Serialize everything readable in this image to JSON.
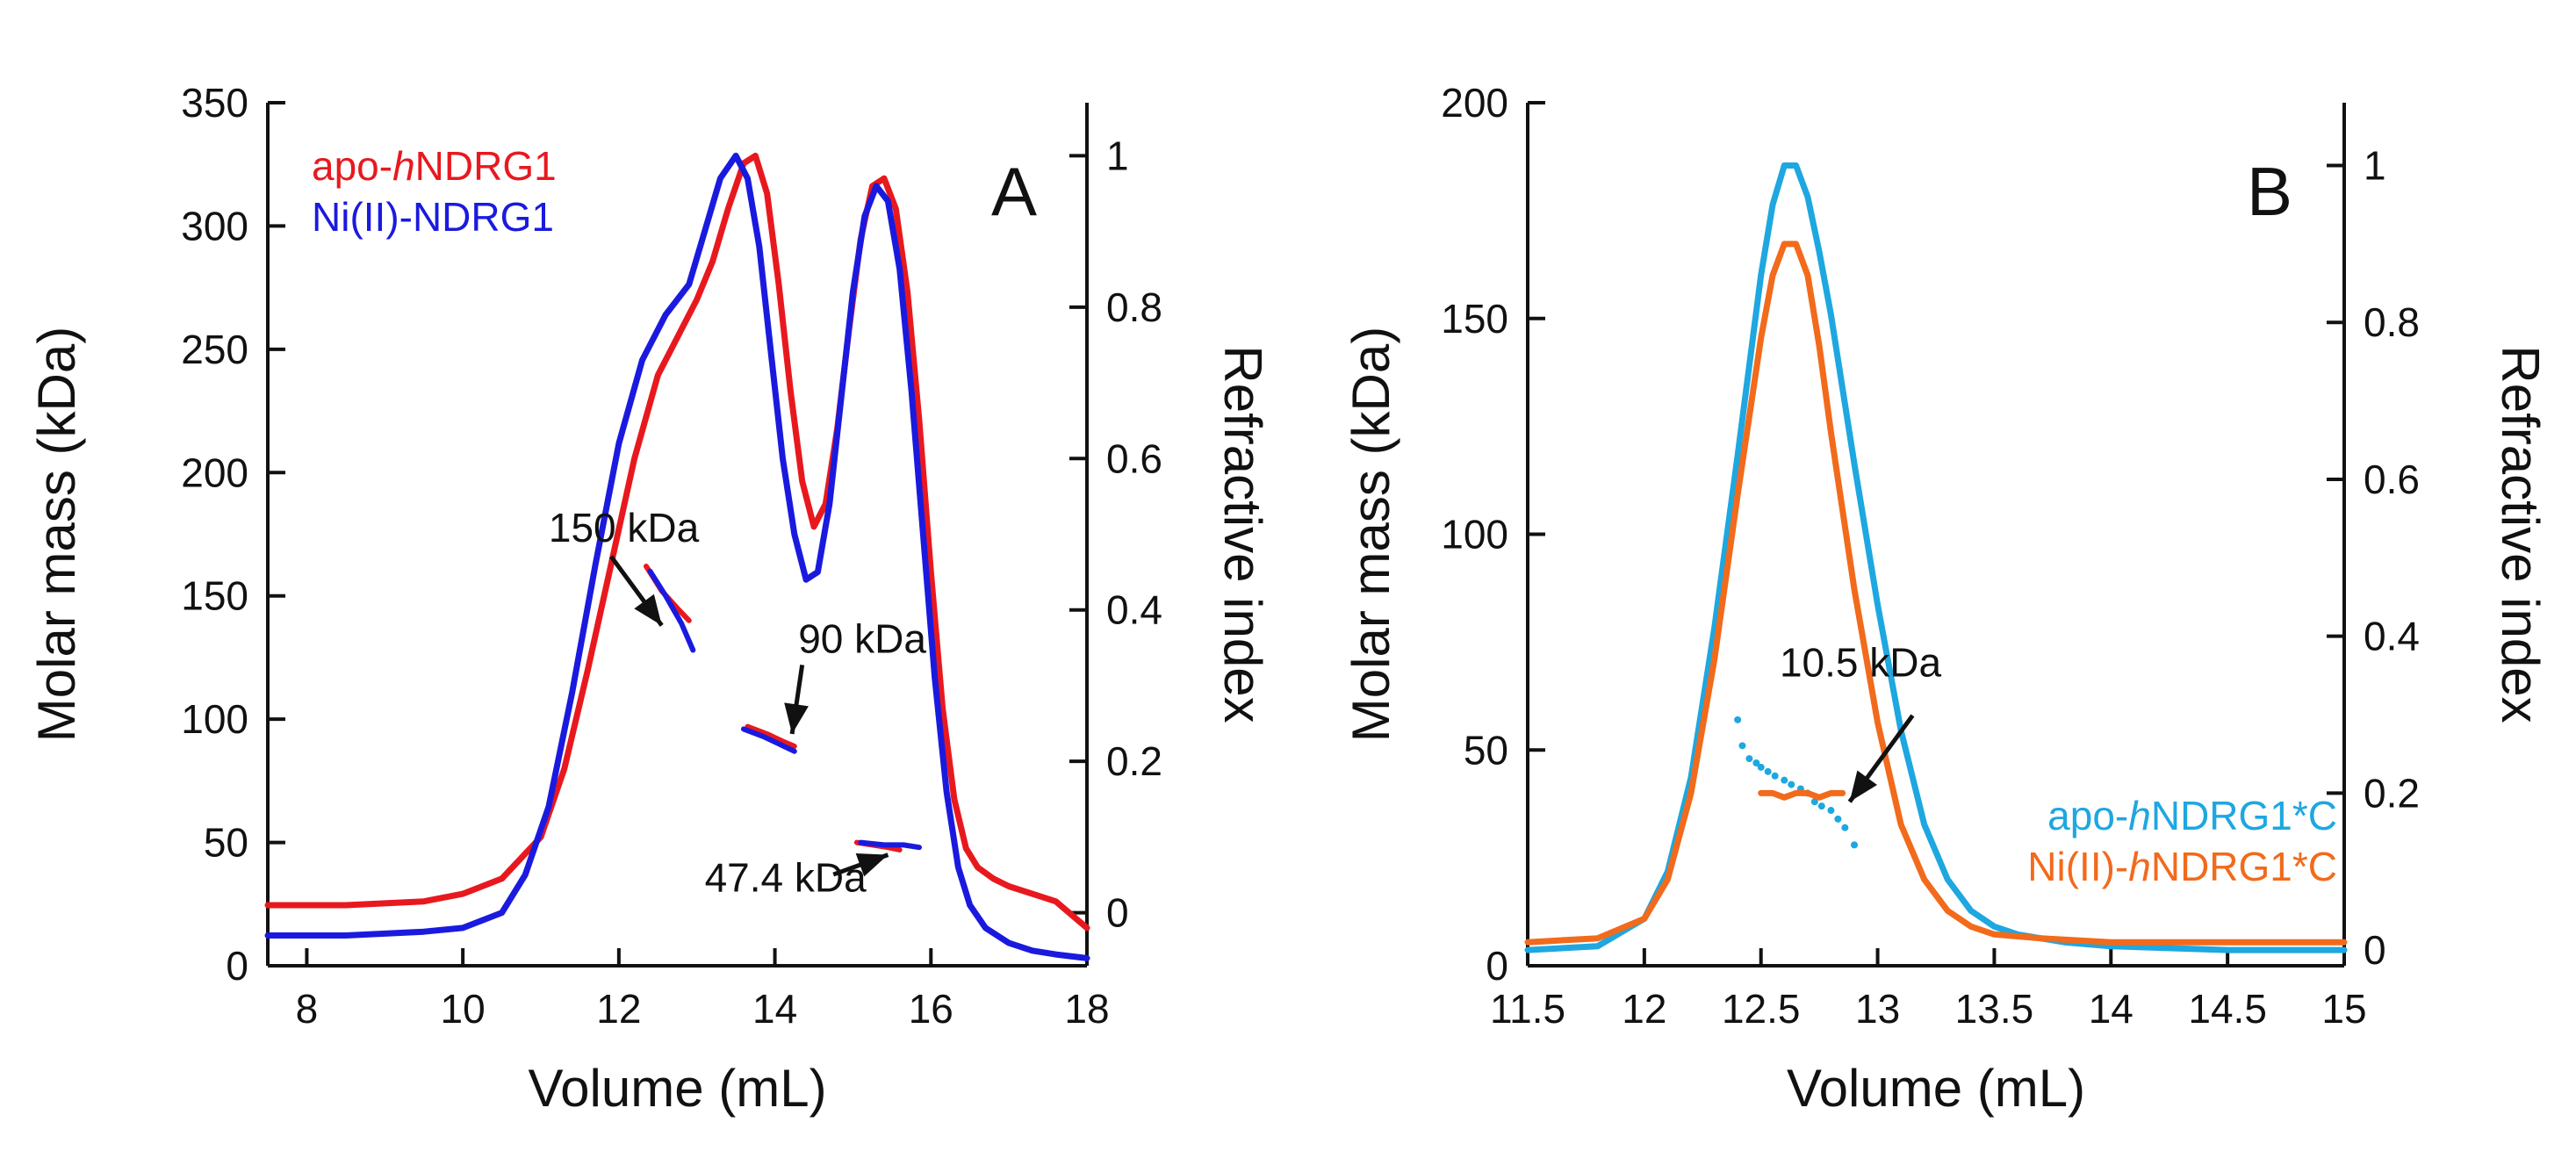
{
  "chart_data": [
    {
      "type": "line",
      "panel_label": "A",
      "xlabel": "Volume (mL)",
      "ylabel": "Molar mass (kDa)",
      "y2label": "Refractive index",
      "xlim": [
        7.5,
        18
      ],
      "ylim": [
        0,
        350
      ],
      "y2lim": [
        -0.07,
        1.07
      ],
      "x_ticks": [
        8,
        10,
        12,
        14,
        16,
        18
      ],
      "y_ticks": [
        0,
        50,
        100,
        150,
        200,
        250,
        300,
        350
      ],
      "y2_ticks": [
        0,
        0.2,
        0.4,
        0.6,
        0.8,
        1
      ],
      "y2_tick_labels": [
        "0",
        "0.2",
        "0.4",
        "0.6",
        "0.8",
        "1"
      ],
      "legend": [
        {
          "prefix": "apo-",
          "italic": "h",
          "suffix": "NDRG1",
          "color": "#e8191e"
        },
        {
          "prefix": "Ni(II)-NDRG1",
          "italic": "",
          "suffix": "",
          "color": "#1a1adf"
        }
      ],
      "series": [
        {
          "name": "apo-hNDRG1",
          "axis": "right",
          "color": "#e8191e",
          "x": [
            7.5,
            8.5,
            9.5,
            10.0,
            10.5,
            11.0,
            11.3,
            11.6,
            11.9,
            12.2,
            12.5,
            12.8,
            13.0,
            13.2,
            13.4,
            13.6,
            13.75,
            13.9,
            14.05,
            14.2,
            14.35,
            14.5,
            14.65,
            14.8,
            14.95,
            15.1,
            15.25,
            15.4,
            15.55,
            15.7,
            15.85,
            16.0,
            16.15,
            16.3,
            16.45,
            16.6,
            16.8,
            17.0,
            17.3,
            17.6,
            18.0
          ],
          "y": [
            0.01,
            0.01,
            0.015,
            0.025,
            0.045,
            0.1,
            0.19,
            0.32,
            0.46,
            0.6,
            0.71,
            0.77,
            0.81,
            0.86,
            0.93,
            0.99,
            1.0,
            0.95,
            0.83,
            0.69,
            0.57,
            0.51,
            0.54,
            0.64,
            0.77,
            0.89,
            0.96,
            0.97,
            0.93,
            0.82,
            0.65,
            0.45,
            0.27,
            0.15,
            0.085,
            0.06,
            0.045,
            0.035,
            0.025,
            0.015,
            -0.02
          ]
        },
        {
          "name": "Ni(II)-NDRG1",
          "axis": "right",
          "color": "#1a1adf",
          "x": [
            7.5,
            8.5,
            9.5,
            10.0,
            10.5,
            10.8,
            11.1,
            11.4,
            11.7,
            12.0,
            12.3,
            12.6,
            12.9,
            13.1,
            13.3,
            13.5,
            13.65,
            13.8,
            13.95,
            14.1,
            14.25,
            14.4,
            14.55,
            14.7,
            14.85,
            15.0,
            15.15,
            15.3,
            15.45,
            15.6,
            15.75,
            15.9,
            16.05,
            16.2,
            16.35,
            16.5,
            16.7,
            17.0,
            17.3,
            17.6,
            18.0
          ],
          "y": [
            -0.03,
            -0.03,
            -0.025,
            -0.02,
            0.0,
            0.05,
            0.14,
            0.29,
            0.46,
            0.62,
            0.73,
            0.79,
            0.83,
            0.9,
            0.97,
            1.0,
            0.97,
            0.88,
            0.74,
            0.6,
            0.5,
            0.44,
            0.45,
            0.54,
            0.68,
            0.82,
            0.92,
            0.96,
            0.94,
            0.85,
            0.69,
            0.5,
            0.31,
            0.16,
            0.06,
            0.01,
            -0.02,
            -0.04,
            -0.05,
            -0.055,
            -0.06
          ]
        },
        {
          "name": "apo-hNDRG1 molar mass",
          "axis": "left",
          "color": "#e8191e",
          "segments": [
            {
              "x": [
                12.35,
                12.55,
                12.75,
                12.9
              ],
              "y": [
                162,
                152,
                145,
                140
              ]
            },
            {
              "x": [
                13.65,
                13.9,
                14.1,
                14.25
              ],
              "y": [
                97,
                94,
                91,
                89
              ]
            },
            {
              "x": [
                15.05,
                15.25,
                15.45,
                15.6
              ],
              "y": [
                50,
                49,
                48,
                47
              ]
            }
          ]
        },
        {
          "name": "Ni(II)-NDRG1 molar mass",
          "axis": "left",
          "color": "#1a1adf",
          "segments": [
            {
              "x": [
                12.4,
                12.6,
                12.8,
                12.95
              ],
              "y": [
                160,
                150,
                139,
                128
              ]
            },
            {
              "x": [
                13.6,
                13.85,
                14.05,
                14.25
              ],
              "y": [
                96,
                93,
                90,
                87
              ]
            },
            {
              "x": [
                15.1,
                15.4,
                15.65,
                15.85
              ],
              "y": [
                50,
                49,
                49,
                48
              ]
            }
          ]
        }
      ],
      "annotations": [
        {
          "text": "150 kDa",
          "x": 11.1,
          "y": 172,
          "arrow_from": [
            11.9,
            166
          ],
          "arrow_to": [
            12.55,
            138
          ]
        },
        {
          "text": "90 kDa",
          "x": 14.3,
          "y": 127,
          "arrow_from": [
            14.35,
            122
          ],
          "arrow_to": [
            14.22,
            94
          ]
        },
        {
          "text": "47.4 kDa",
          "x": 13.1,
          "y": 30,
          "arrow_from": [
            14.75,
            37
          ],
          "arrow_to": [
            15.45,
            45
          ]
        }
      ]
    },
    {
      "type": "line",
      "panel_label": "B",
      "xlabel": "Volume (mL)",
      "ylabel": "Molar mass (kDa)",
      "y2label": "Refractive index",
      "xlim": [
        11.5,
        15
      ],
      "ylim": [
        0,
        200
      ],
      "y2lim": [
        -0.02,
        1.08
      ],
      "x_ticks": [
        11.5,
        12,
        12.5,
        13,
        13.5,
        14,
        14.5,
        15
      ],
      "y_ticks": [
        0,
        50,
        100,
        150,
        200
      ],
      "y2_ticks": [
        0,
        0.2,
        0.4,
        0.6,
        0.8,
        1
      ],
      "y2_tick_labels": [
        "0",
        "0.2",
        "0.4",
        "0.6",
        "0.8",
        "1"
      ],
      "legend": [
        {
          "prefix": "apo-",
          "italic": "h",
          "suffix": "NDRG1*C",
          "color": "#1ea7e0"
        },
        {
          "prefix": "Ni(II)-",
          "italic": "h",
          "suffix": "NDRG1*C",
          "color": "#f26a1b"
        }
      ],
      "series": [
        {
          "name": "apo-hNDRG1*C",
          "axis": "right",
          "color": "#1ea7e0",
          "x": [
            11.5,
            11.8,
            12.0,
            12.1,
            12.2,
            12.3,
            12.4,
            12.5,
            12.55,
            12.6,
            12.65,
            12.7,
            12.75,
            12.8,
            12.9,
            13.0,
            13.1,
            13.2,
            13.3,
            13.4,
            13.5,
            13.6,
            13.8,
            14.0,
            14.5,
            15.0
          ],
          "y": [
            0.0,
            0.005,
            0.04,
            0.1,
            0.22,
            0.41,
            0.63,
            0.86,
            0.95,
            1.0,
            1.0,
            0.96,
            0.89,
            0.81,
            0.62,
            0.44,
            0.28,
            0.16,
            0.09,
            0.05,
            0.03,
            0.02,
            0.01,
            0.005,
            0.0,
            0.0
          ]
        },
        {
          "name": "Ni(II)-hNDRG1*C",
          "axis": "right",
          "color": "#f26a1b",
          "x": [
            11.5,
            11.8,
            12.0,
            12.1,
            12.2,
            12.3,
            12.4,
            12.5,
            12.55,
            12.6,
            12.65,
            12.7,
            12.75,
            12.8,
            12.9,
            13.0,
            13.1,
            13.2,
            13.3,
            13.4,
            13.5,
            13.7,
            14.0,
            14.5,
            15.0
          ],
          "y": [
            0.01,
            0.015,
            0.04,
            0.09,
            0.2,
            0.37,
            0.58,
            0.78,
            0.86,
            0.9,
            0.9,
            0.86,
            0.77,
            0.66,
            0.46,
            0.29,
            0.16,
            0.09,
            0.05,
            0.03,
            0.02,
            0.015,
            0.01,
            0.01,
            0.01
          ]
        },
        {
          "name": "apo-hNDRG1*C molar mass",
          "axis": "left",
          "color": "#1ea7e0",
          "scatter": true,
          "x": [
            12.4,
            12.42,
            12.45,
            12.48,
            12.5,
            12.53,
            12.56,
            12.6,
            12.63,
            12.67,
            12.7,
            12.73,
            12.76,
            12.8,
            12.83,
            12.86,
            12.9
          ],
          "y": [
            57,
            51,
            48,
            47,
            46,
            45,
            44,
            43,
            42,
            41,
            40,
            38,
            37,
            36,
            34,
            32,
            28
          ]
        },
        {
          "name": "Ni(II)-hNDRG1*C molar mass",
          "axis": "left",
          "color": "#f26a1b",
          "x": [
            12.5,
            12.55,
            12.6,
            12.65,
            12.7,
            12.75,
            12.8,
            12.85
          ],
          "y": [
            40,
            40,
            39,
            40,
            40,
            39,
            40,
            40
          ]
        }
      ],
      "annotations": [
        {
          "text": "10.5 kDa",
          "x": 12.58,
          "y": 67,
          "arrow_from": [
            13.15,
            58
          ],
          "arrow_to": [
            12.88,
            38
          ]
        }
      ]
    }
  ]
}
